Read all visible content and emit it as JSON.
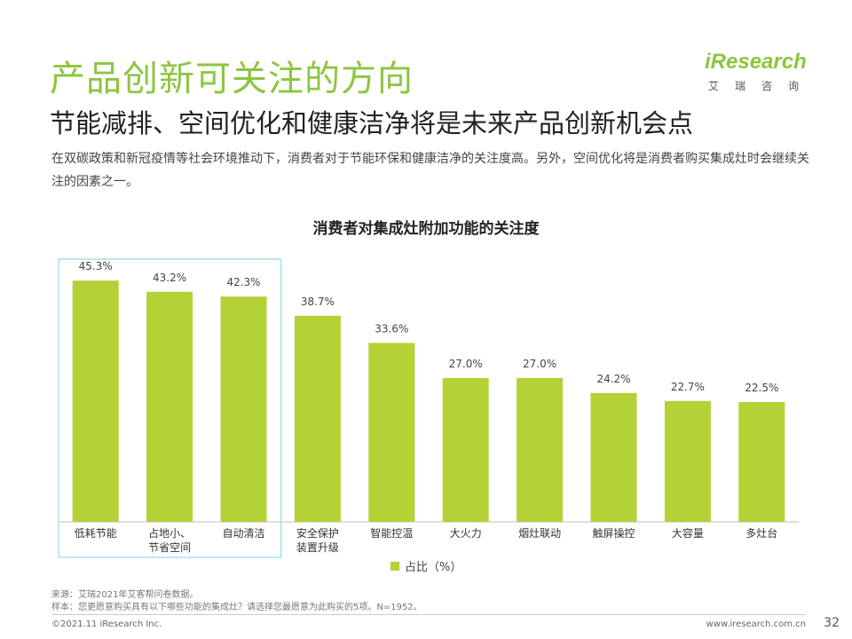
{
  "header": {
    "title": "产品创新可关注的方向",
    "subtitle": "节能减排、空间优化和健康洁净将是未来产品创新机会点",
    "description": "在双碳政策和新冠疫情等社会环境推动下，消费者对于节能环保和健康洁净的关注度高。另外，空间优化将是消费者购买集成灶时会继续关注的因素之一。"
  },
  "logo": {
    "word": "iResearch",
    "sub": "艾瑞咨询"
  },
  "colors": {
    "title": "#8cc63f",
    "bar": "#b2d235",
    "highlight_box": "#7fd3e0"
  },
  "chart_data": {
    "type": "bar",
    "title": "消费者对集成灶附加功能的关注度",
    "categories": [
      [
        "低耗节能"
      ],
      [
        "占地小、",
        "节省空间"
      ],
      [
        "自动清洁"
      ],
      [
        "安全保护",
        "装置升级"
      ],
      [
        "智能控温"
      ],
      [
        "大火力"
      ],
      [
        "烟灶联动"
      ],
      [
        "触屏操控"
      ],
      [
        "大容量"
      ],
      [
        "多灶台"
      ]
    ],
    "values": [
      45.3,
      43.2,
      42.3,
      38.7,
      33.6,
      27.0,
      27.0,
      24.2,
      22.7,
      22.5
    ],
    "value_labels": [
      "45.3%",
      "43.2%",
      "42.3%",
      "38.7%",
      "33.6%",
      "27.0%",
      "27.0%",
      "24.2%",
      "22.7%",
      "22.5%"
    ],
    "series_name": "占比（%）",
    "ylim": [
      0,
      50
    ],
    "highlighted_count": 3
  },
  "legend": {
    "label": "占比（%）"
  },
  "footer": {
    "source": "来源：艾瑞2021年艾客帮问卷数据。",
    "sample": "样本：您更愿意购买具有以下哪些功能的集成灶？请选择您最愿意为此购买的5项。N=1952。",
    "copyright": "©2021.11 iResearch Inc.",
    "website": "www.iresearch.com.cn",
    "page_number": "32"
  }
}
